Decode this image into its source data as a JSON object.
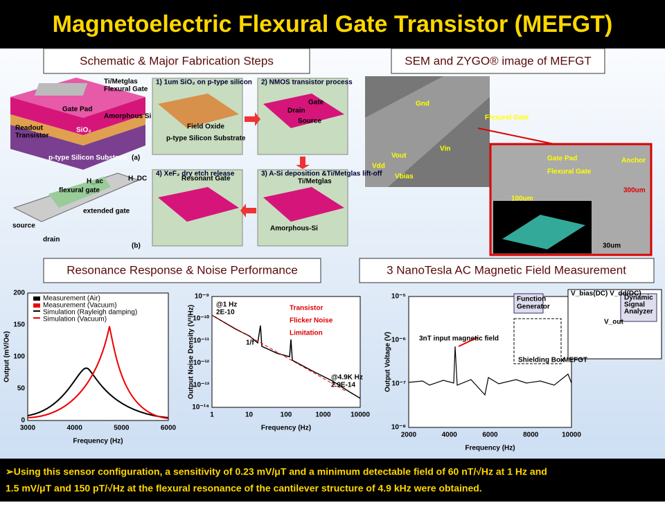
{
  "title": "Magnetoelectric Flexural Gate Transistor (MEFGT)",
  "headings": [
    "Schematic & Major Fabrication Steps",
    "SEM and ZYGO® image of MEFGT",
    "Resonance Response & Noise Performance",
    "3 NanoTesla AC Magnetic Field Measurement"
  ],
  "schematic": {
    "labels": [
      "Ti/Metglas",
      "Flexural Gate",
      "Gate Pad",
      "Amorphous Si",
      "Readout",
      "Transistor",
      "SiO₂",
      "p-type Silicon Substrate",
      "(a)",
      "flexural gate",
      "extended gate",
      "source",
      "drain",
      "(b)",
      "H_DC",
      "H_ac"
    ]
  },
  "steps": [
    "1) 1um SiO₂ on p-type silicon",
    "2) NMOS transistor process",
    "4) XeF₂ dry etch release",
    "3) A-Si deposition &Ti/Metglas lift-off",
    "Field Oxide",
    "p-type Silicon Substrate",
    "Gate",
    "Drain",
    "Source",
    "Resonant Gate",
    "Ti/Metglas",
    "Amorphous-Si"
  ],
  "sem": {
    "labels": [
      "Gnd",
      "Vout",
      "Vdd",
      "Vin",
      "Vbias",
      "Flexural Gate",
      "Gate Pad",
      "Flexural Gate",
      "Anchor",
      "300um",
      "100um",
      "30um"
    ]
  },
  "plots": [
    {
      "ytitle": "Output (mV/Oe)",
      "xtitle": "Frequency (Hz)",
      "yticks": [
        "200",
        "150",
        "100",
        "50",
        "0"
      ],
      "xticks": [
        "3000",
        "4000",
        "5000",
        "6000"
      ],
      "legend": [
        "Measurement (Air)",
        "Measurement (Vacuum)",
        "Simulation (Rayleigh damping)",
        "Simulation (Vacuum)"
      ]
    },
    {
      "ytitle": "Output Noise Density (V²/Hz)",
      "xtitle": "Frequency (Hz)",
      "yticks": [
        "10⁻⁹",
        "10⁻¹⁰",
        "10⁻¹¹",
        "10⁻¹²",
        "10⁻¹³",
        "10⁻¹⁴"
      ],
      "xticks": [
        "1",
        "10",
        "100",
        "1000",
        "10000"
      ],
      "annotations": [
        "@1 Hz",
        "2E-10",
        "1/f",
        "@4.9K Hz",
        "2.9E-14",
        "Transistor",
        "Flicker Noise",
        "Limitation"
      ]
    },
    {
      "ytitle": "Output Voltage (V)",
      "xtitle": "Frequency (Hz)",
      "yticks": [
        "10⁻⁵",
        "10⁻⁶",
        "10⁻⁷",
        "10⁻⁸"
      ],
      "xticks": [
        "2000",
        "4000",
        "6000",
        "8000",
        "10000"
      ],
      "annotations": [
        "3nT input magnetic field",
        "Function",
        "Generator",
        "Shielding Box",
        "MEFGT",
        "Dynamic",
        "Signal",
        "Analyzer",
        "V_bias(DC) V_dd(DC)",
        "V_out"
      ]
    }
  ],
  "footer": [
    "➢Using this sensor configuration, a sensitivity of 0.23 mV/μT and a minimum detectable field of 60 nT/√Hz at 1 Hz and",
    "1.5 mV/μT and 150 pT/√Hz at the flexural resonance of the cantilever structure of 4.9 kHz were obtained."
  ]
}
